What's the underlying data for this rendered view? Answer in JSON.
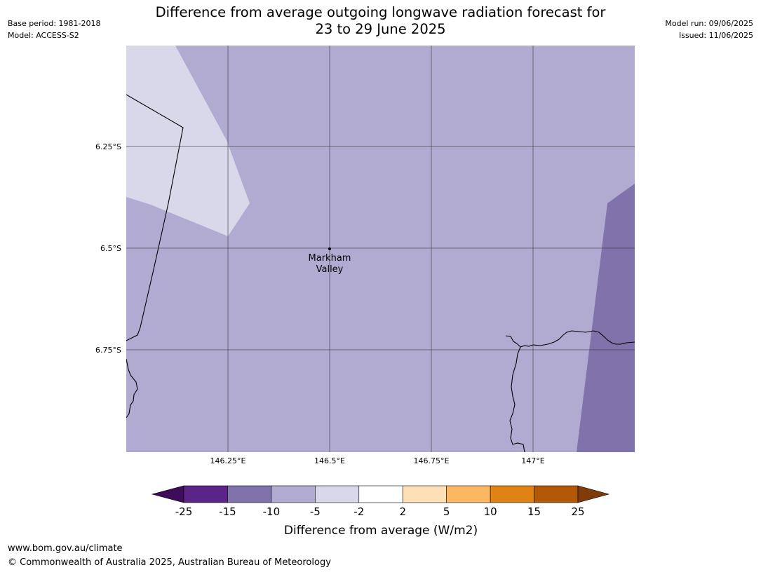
{
  "header": {
    "base_period": "Base period: 1981-2018",
    "model": "Model: ACCESS-S2",
    "model_run": "Model run: 09/06/2025",
    "issued": "Issued: 11/06/2025",
    "title_line1": "Difference from average outgoing longwave radiation forecast for",
    "title_line2": "23 to 29 June 2025"
  },
  "map": {
    "lat_labels": [
      "6.25°S",
      "6.5°S",
      "6.75°S"
    ],
    "lon_labels": [
      "146.25°E",
      "146.5°E",
      "146.75°E",
      "147°E"
    ],
    "place": {
      "name_line1": "Markham",
      "name_line2": "Valley"
    },
    "colors": {
      "background": "#b1abd2",
      "light_region": "#d8d8ea",
      "dark_region": "#8073ac"
    }
  },
  "colorbar": {
    "ticks": [
      "-25",
      "-15",
      "-10",
      "-5",
      "-2",
      "2",
      "5",
      "10",
      "15",
      "25"
    ],
    "colors": [
      "#3f0b5b",
      "#5a2587",
      "#8073ac",
      "#b1abd2",
      "#d8d8ea",
      "#ffffff",
      "#fee0b6",
      "#fdb863",
      "#e08214",
      "#b35807",
      "#7f3b08"
    ],
    "label": "Difference from average (W/m2)"
  },
  "footer": {
    "url": "www.bom.gov.au/climate",
    "copyright": "© Commonwealth of Australia 2025, Australian Bureau of Meteorology"
  }
}
